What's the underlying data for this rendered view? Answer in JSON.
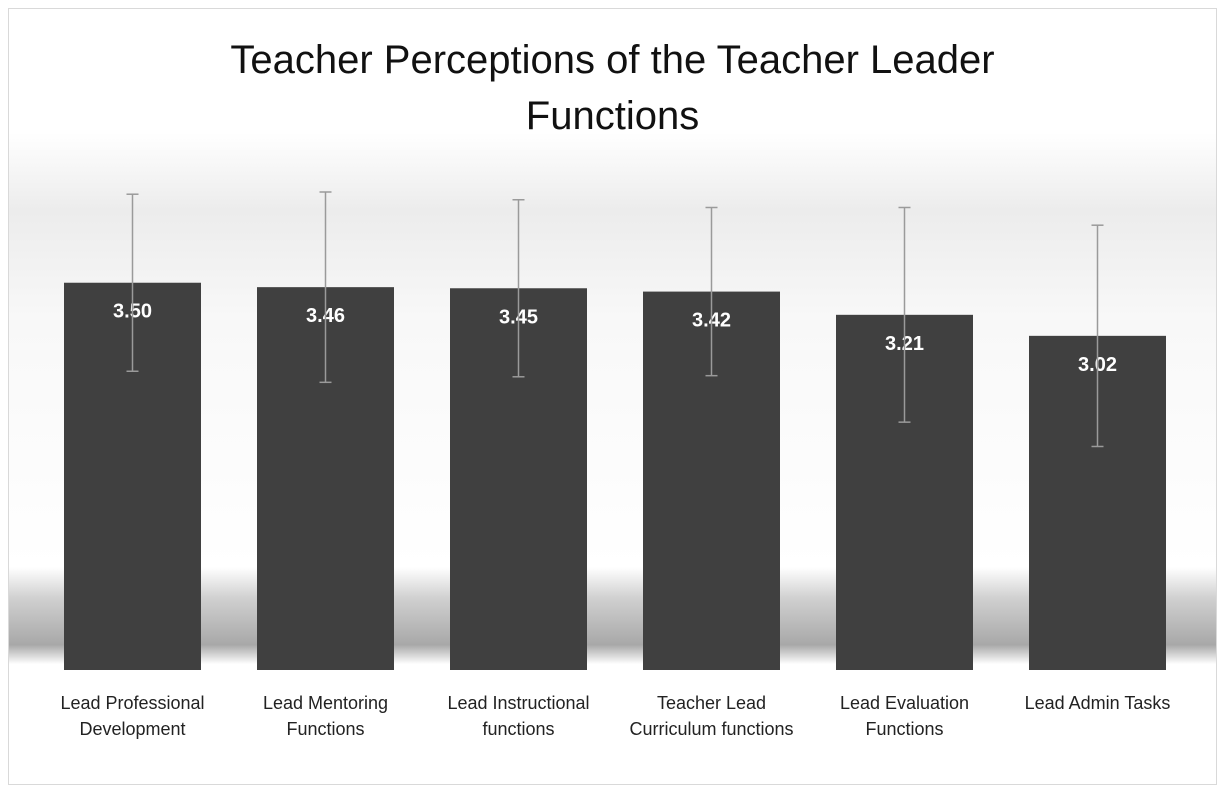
{
  "chart_data": {
    "type": "bar",
    "title": "Teacher Perceptions of the Teacher Leader Functions",
    "categories": [
      "Lead Professional Development",
      "Lead Mentoring Functions",
      "Lead Instructional functions",
      "Teacher Lead Curriculum functions",
      "Lead Evaluation Functions",
      "Lead Admin Tasks"
    ],
    "values": [
      3.5,
      3.46,
      3.45,
      3.42,
      3.21,
      3.02
    ],
    "value_labels": [
      "3.50",
      "3.46",
      "3.45",
      "3.42",
      "3.21",
      "3.02"
    ],
    "errors": [
      0.8,
      0.86,
      0.8,
      0.76,
      0.97,
      1.0
    ],
    "color": "#404040",
    "error_color": "#9a9a9a"
  }
}
